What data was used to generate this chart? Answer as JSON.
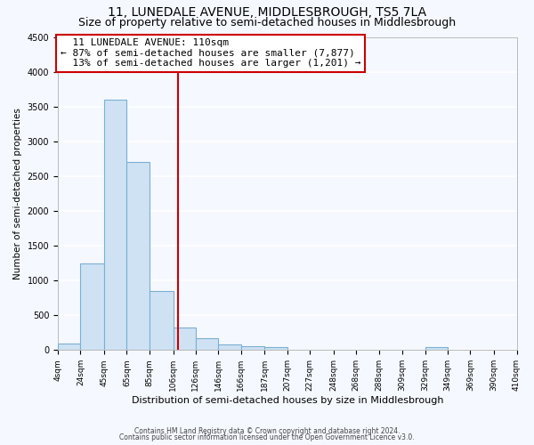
{
  "title": "11, LUNEDALE AVENUE, MIDDLESBROUGH, TS5 7LA",
  "subtitle": "Size of property relative to semi-detached houses in Middlesbrough",
  "bar_values": [
    90,
    1250,
    3600,
    2700,
    850,
    330,
    170,
    80,
    55,
    40,
    0,
    0,
    0,
    0,
    0,
    0,
    40
  ],
  "bin_edges": [
    4,
    24,
    45,
    65,
    85,
    106,
    126,
    146,
    166,
    187,
    207,
    227,
    248,
    268,
    288,
    309,
    329,
    349,
    369,
    390,
    410
  ],
  "tick_labels": [
    "4sqm",
    "24sqm",
    "45sqm",
    "65sqm",
    "85sqm",
    "106sqm",
    "126sqm",
    "146sqm",
    "166sqm",
    "187sqm",
    "207sqm",
    "227sqm",
    "248sqm",
    "268sqm",
    "288sqm",
    "309sqm",
    "329sqm",
    "349sqm",
    "369sqm",
    "390sqm",
    "410sqm"
  ],
  "bar_color": "#cfe2f3",
  "bar_edge_color": "#7bafd4",
  "property_line_x": 110,
  "property_label": "11 LUNEDALE AVENUE: 110sqm",
  "pct_smaller": "87%",
  "n_smaller": "7,877",
  "pct_larger": "13%",
  "n_larger": "1,201",
  "annotation_box_color": "#ffffff",
  "annotation_box_edge": "#cc0000",
  "vertical_line_color": "#cc0000",
  "xlabel": "Distribution of semi-detached houses by size in Middlesbrough",
  "ylabel": "Number of semi-detached properties",
  "ylim": [
    0,
    4500
  ],
  "yticks": [
    0,
    500,
    1000,
    1500,
    2000,
    2500,
    3000,
    3500,
    4000,
    4500
  ],
  "footer1": "Contains HM Land Registry data © Crown copyright and database right 2024.",
  "footer2": "Contains public sector information licensed under the Open Government Licence v3.0.",
  "bg_color": "#f5f8ff",
  "grid_color": "#ffffff",
  "title_fontsize": 10,
  "subtitle_fontsize": 9,
  "xlabel_fontsize": 8,
  "ylabel_fontsize": 7.5,
  "tick_fontsize": 6.5,
  "ytick_fontsize": 7,
  "footer_fontsize": 5.5,
  "annot_fontsize": 8
}
